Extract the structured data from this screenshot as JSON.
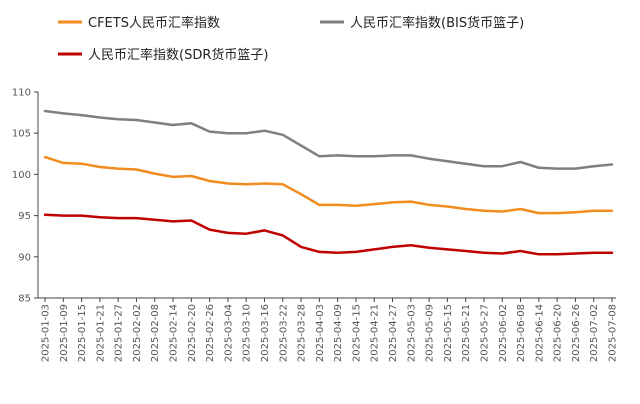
{
  "chart_data": {
    "type": "line",
    "title": "",
    "xlabel": "",
    "ylabel": "",
    "ylim": [
      85,
      110
    ],
    "yticks": [
      85,
      90,
      95,
      100,
      105,
      110
    ],
    "grid": false,
    "legend_placement": "top",
    "x": [
      "2025-01-03",
      "2025-01-09",
      "2025-01-15",
      "2025-01-21",
      "2025-01-27",
      "2025-02-02",
      "2025-02-08",
      "2025-02-14",
      "2025-02-20",
      "2025-02-26",
      "2025-03-04",
      "2025-03-10",
      "2025-03-16",
      "2025-03-22",
      "2025-03-28",
      "2025-04-03",
      "2025-04-09",
      "2025-04-15",
      "2025-04-21",
      "2025-04-27",
      "2025-05-03",
      "2025-05-09",
      "2025-05-15",
      "2025-05-21",
      "2025-05-27",
      "2025-06-02",
      "2025-06-08",
      "2025-06-14",
      "2025-06-20",
      "2025-06-26",
      "2025-07-02",
      "2025-07-08"
    ],
    "series": [
      {
        "name": "CFETS人民币汇率指数",
        "color": "#f28c1e",
        "values": [
          102.1,
          101.4,
          101.3,
          100.9,
          100.7,
          100.6,
          100.1,
          99.7,
          99.8,
          99.2,
          98.9,
          98.8,
          98.9,
          98.8,
          97.6,
          96.3,
          96.3,
          96.2,
          96.4,
          96.6,
          96.7,
          96.3,
          96.1,
          95.8,
          95.6,
          95.5,
          95.8,
          95.3,
          95.3,
          95.4,
          95.6,
          95.6
        ]
      },
      {
        "name": "人民币汇率指数(BIS货币篮子)",
        "color": "#7f7f7f",
        "values": [
          107.7,
          107.4,
          107.2,
          106.9,
          106.7,
          106.6,
          106.3,
          106.0,
          106.2,
          105.2,
          105.0,
          105.0,
          105.3,
          104.8,
          103.5,
          102.2,
          102.3,
          102.2,
          102.2,
          102.3,
          102.3,
          101.9,
          101.6,
          101.3,
          101.0,
          101.0,
          101.5,
          100.8,
          100.7,
          100.7,
          101.0,
          101.2
        ]
      },
      {
        "name": "人民币汇率指数(SDR货币篮子)",
        "color": "#c00000",
        "values": [
          95.1,
          95.0,
          95.0,
          94.8,
          94.7,
          94.7,
          94.5,
          94.3,
          94.4,
          93.3,
          92.9,
          92.8,
          93.2,
          92.6,
          91.2,
          90.6,
          90.5,
          90.6,
          90.9,
          91.2,
          91.4,
          91.1,
          90.9,
          90.7,
          90.5,
          90.4,
          90.7,
          90.3,
          90.3,
          90.4,
          90.5,
          90.5
        ]
      }
    ]
  }
}
